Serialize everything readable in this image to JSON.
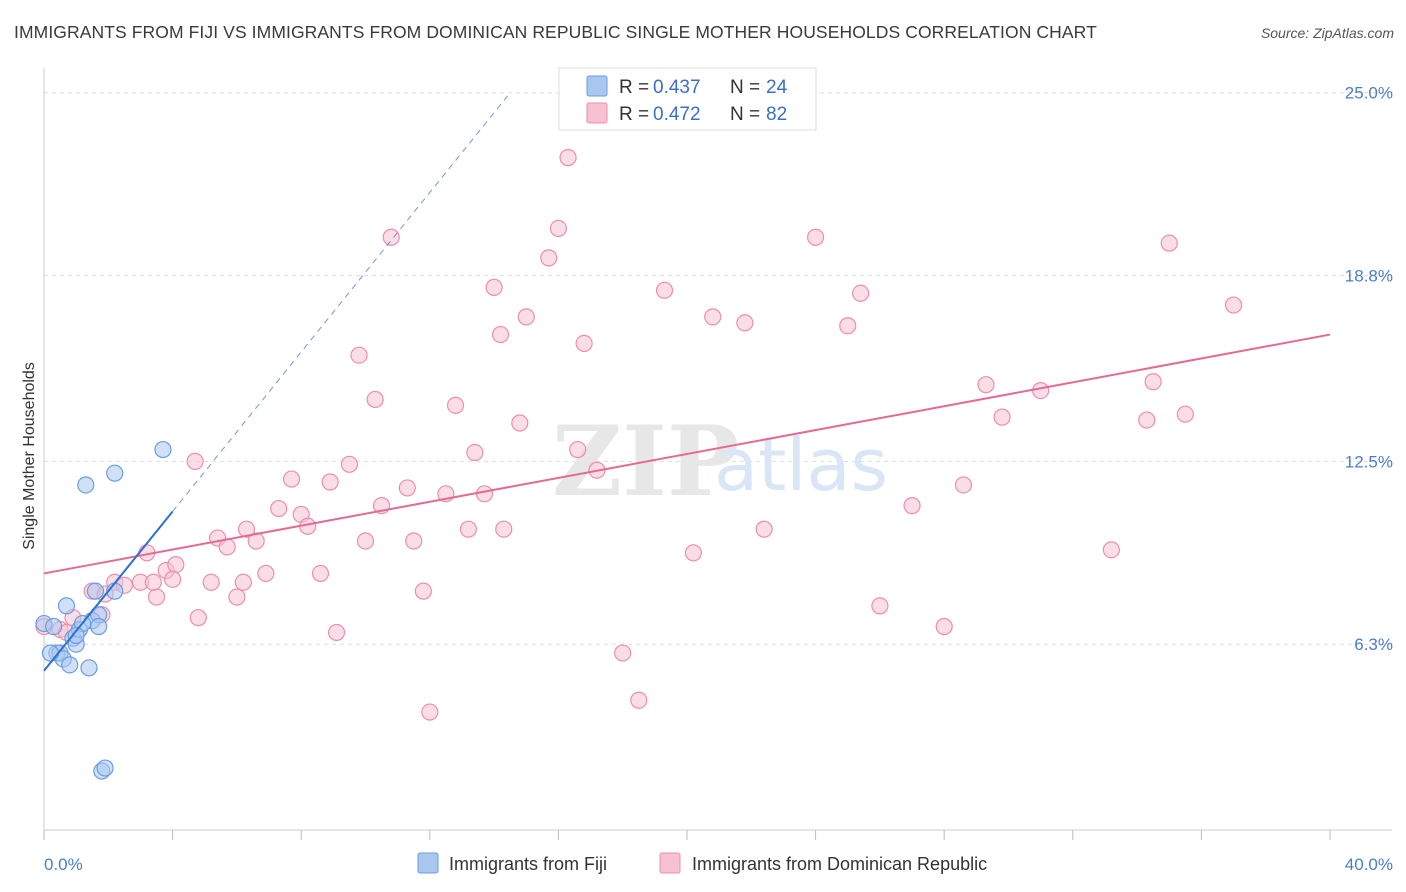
{
  "title": "IMMIGRANTS FROM FIJI VS IMMIGRANTS FROM DOMINICAN REPUBLIC SINGLE MOTHER HOUSEHOLDS CORRELATION CHART",
  "source": "Source: ZipAtlas.com",
  "watermark": {
    "zip": "ZIP",
    "atlas": "atlas"
  },
  "colors": {
    "fiji_fill": "#a9c8f0",
    "fiji_stroke": "#6a9de0",
    "fiji_line": "#2f6fcf",
    "dom_fill": "#f7c1d1",
    "dom_stroke": "#ea8fae",
    "dom_line": "#e56a93",
    "tick_label": "#4a7ecb",
    "grid": "#dddddd"
  },
  "legend": {
    "entries": [
      {
        "r_label": "R = ",
        "r_value": "0.437",
        "n_label": "N = ",
        "n_value": "24"
      },
      {
        "r_label": "R = ",
        "r_value": "0.472",
        "n_label": "N = ",
        "n_value": "82"
      }
    ]
  },
  "chart_data": {
    "type": "scatter",
    "xlabel": "",
    "ylabel": "Single Mother Households",
    "xlim": [
      0,
      40
    ],
    "ylim": [
      0,
      25.5
    ],
    "x_tick_labels": [
      {
        "value": 0,
        "label": "0.0%"
      },
      {
        "value": 40,
        "label": "40.0%"
      }
    ],
    "y_tick_labels": [
      {
        "value": 6.3,
        "label": "6.3%"
      },
      {
        "value": 12.5,
        "label": "12.5%"
      },
      {
        "value": 18.8,
        "label": "18.8%"
      },
      {
        "value": 25.0,
        "label": "25.0%"
      }
    ],
    "grid": true,
    "legend_position": "top-center",
    "series": [
      {
        "name": "Immigrants from Fiji",
        "points": [
          [
            0.0,
            7.0
          ],
          [
            0.3,
            6.9
          ],
          [
            0.4,
            6.0
          ],
          [
            0.5,
            6.0
          ],
          [
            0.6,
            5.8
          ],
          [
            0.7,
            7.6
          ],
          [
            0.8,
            5.6
          ],
          [
            0.9,
            6.5
          ],
          [
            1.0,
            6.3
          ],
          [
            1.1,
            6.8
          ],
          [
            1.3,
            11.7
          ],
          [
            1.4,
            5.5
          ],
          [
            1.5,
            7.1
          ],
          [
            1.6,
            8.1
          ],
          [
            1.7,
            7.3
          ],
          [
            1.7,
            6.9
          ],
          [
            1.8,
            2.0
          ],
          [
            1.9,
            2.1
          ],
          [
            2.2,
            8.1
          ],
          [
            2.2,
            12.1
          ],
          [
            3.7,
            12.9
          ],
          [
            1.2,
            7.0
          ],
          [
            0.2,
            6.0
          ],
          [
            1.0,
            6.6
          ]
        ],
        "trend": {
          "x": [
            0.0,
            4.0
          ],
          "y": [
            5.4,
            10.8
          ]
        },
        "trend_extension": {
          "x": [
            4.0,
            14.5
          ],
          "y": [
            10.8,
            25.0
          ]
        }
      },
      {
        "name": "Immigrants from Dominican Republic",
        "points": [
          [
            0.0,
            6.9
          ],
          [
            0.5,
            6.8
          ],
          [
            0.7,
            6.7
          ],
          [
            0.9,
            7.2
          ],
          [
            1.8,
            7.3
          ],
          [
            1.5,
            8.1
          ],
          [
            1.9,
            8.0
          ],
          [
            2.2,
            8.4
          ],
          [
            2.5,
            8.3
          ],
          [
            3.0,
            8.4
          ],
          [
            3.2,
            9.4
          ],
          [
            3.5,
            7.9
          ],
          [
            3.8,
            8.8
          ],
          [
            4.1,
            9.0
          ],
          [
            4.0,
            8.5
          ],
          [
            4.7,
            12.5
          ],
          [
            4.8,
            7.2
          ],
          [
            5.2,
            8.4
          ],
          [
            5.4,
            9.9
          ],
          [
            5.7,
            9.6
          ],
          [
            6.0,
            7.9
          ],
          [
            6.2,
            8.4
          ],
          [
            6.3,
            10.2
          ],
          [
            6.6,
            9.8
          ],
          [
            6.9,
            8.7
          ],
          [
            7.3,
            10.9
          ],
          [
            7.7,
            11.9
          ],
          [
            8.0,
            10.7
          ],
          [
            8.2,
            10.3
          ],
          [
            8.6,
            8.7
          ],
          [
            8.9,
            11.8
          ],
          [
            9.1,
            6.7
          ],
          [
            9.5,
            12.4
          ],
          [
            9.8,
            16.1
          ],
          [
            10.0,
            9.8
          ],
          [
            10.3,
            14.6
          ],
          [
            10.5,
            11.0
          ],
          [
            10.8,
            20.1
          ],
          [
            11.3,
            11.6
          ],
          [
            11.5,
            9.8
          ],
          [
            11.8,
            8.1
          ],
          [
            12.0,
            4.0
          ],
          [
            12.5,
            11.4
          ],
          [
            12.8,
            14.4
          ],
          [
            13.2,
            10.2
          ],
          [
            13.4,
            12.8
          ],
          [
            13.7,
            11.4
          ],
          [
            14.0,
            18.4
          ],
          [
            14.2,
            16.8
          ],
          [
            14.3,
            10.2
          ],
          [
            14.8,
            13.8
          ],
          [
            15.0,
            17.4
          ],
          [
            15.7,
            19.4
          ],
          [
            16.0,
            20.4
          ],
          [
            16.3,
            22.8
          ],
          [
            16.6,
            12.9
          ],
          [
            16.8,
            16.5
          ],
          [
            17.2,
            12.2
          ],
          [
            18.0,
            6.0
          ],
          [
            18.5,
            4.4
          ],
          [
            19.3,
            18.3
          ],
          [
            20.2,
            9.4
          ],
          [
            20.8,
            17.4
          ],
          [
            21.8,
            17.2
          ],
          [
            22.4,
            10.2
          ],
          [
            24.0,
            20.1
          ],
          [
            25.0,
            17.1
          ],
          [
            25.4,
            18.2
          ],
          [
            26.0,
            7.6
          ],
          [
            27.0,
            11.0
          ],
          [
            28.0,
            6.9
          ],
          [
            28.6,
            11.7
          ],
          [
            29.3,
            15.1
          ],
          [
            29.8,
            14.0
          ],
          [
            31.0,
            14.9
          ],
          [
            33.2,
            9.5
          ],
          [
            34.3,
            13.9
          ],
          [
            34.5,
            15.2
          ],
          [
            35.0,
            19.9
          ],
          [
            35.5,
            14.1
          ],
          [
            37.0,
            17.8
          ],
          [
            3.4,
            8.4
          ]
        ],
        "trend": {
          "x": [
            0.0,
            40.0
          ],
          "y": [
            8.7,
            16.8
          ]
        }
      }
    ]
  }
}
